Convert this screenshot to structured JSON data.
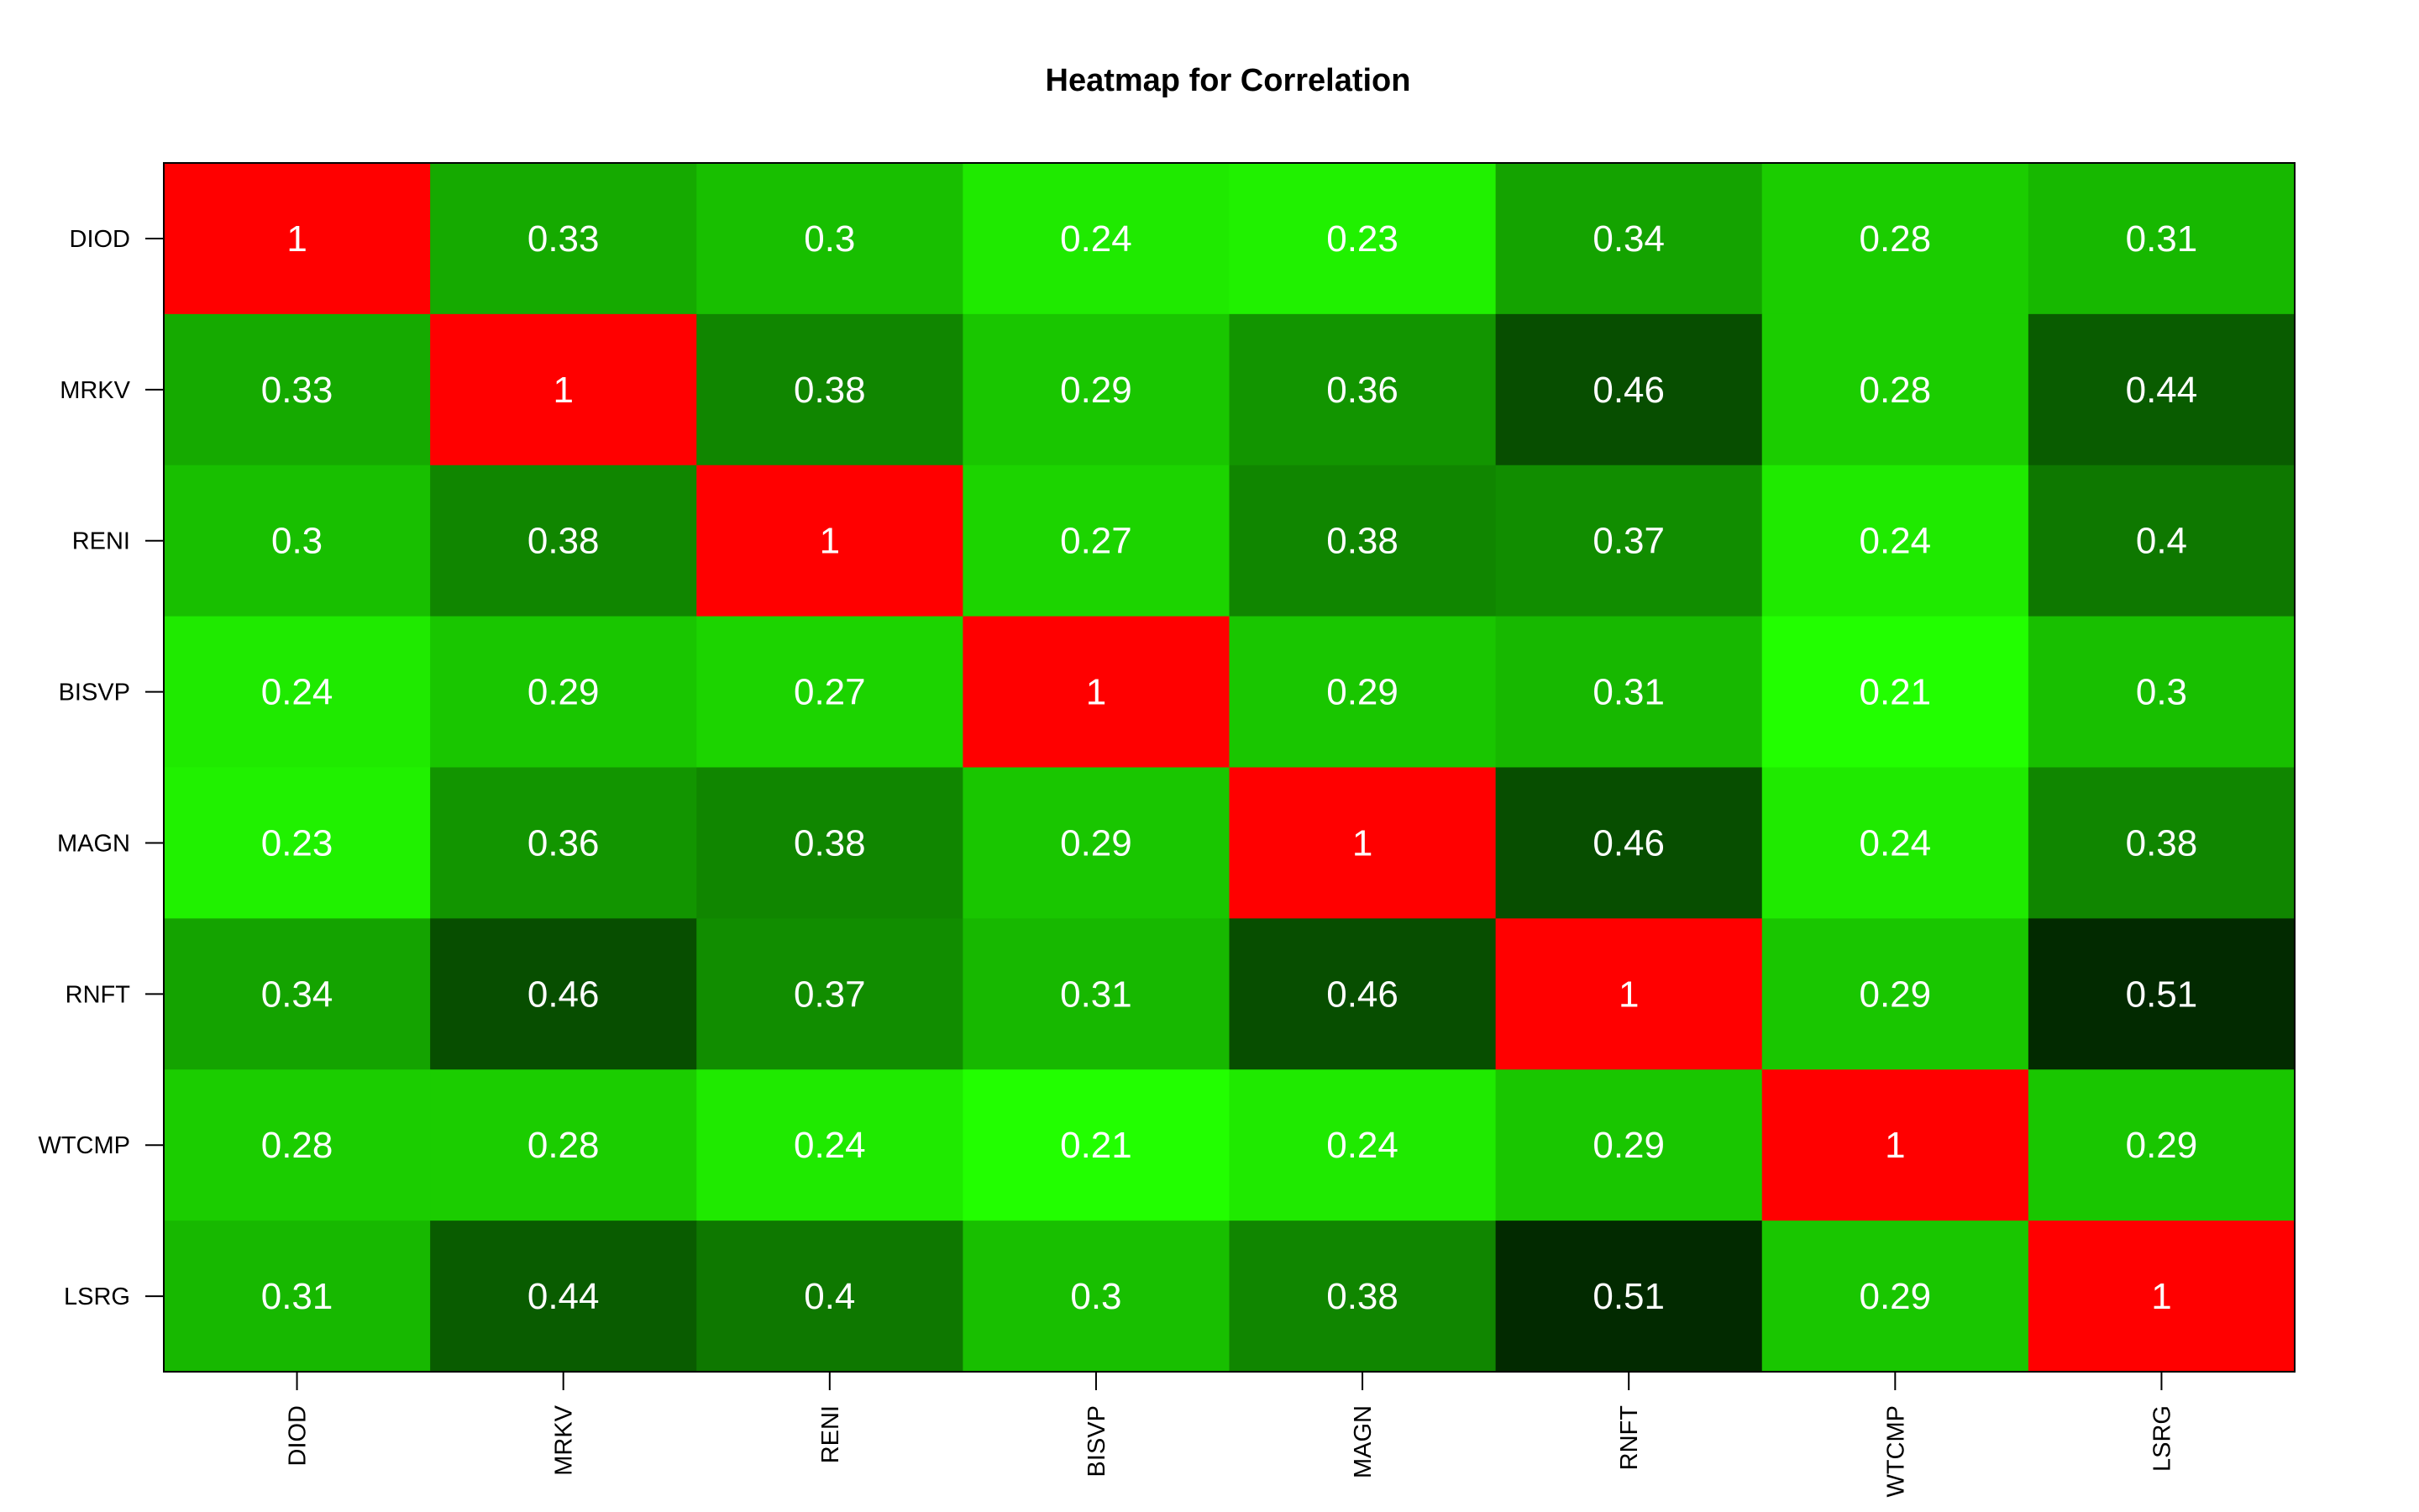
{
  "chart_data": {
    "type": "heatmap",
    "title": "Heatmap for Correlation",
    "rows": [
      "DIOD",
      "MRKV",
      "RENI",
      "BISVP",
      "MAGN",
      "RNFT",
      "WTCMP",
      "LSRG"
    ],
    "columns": [
      "DIOD",
      "MRKV",
      "RENI",
      "BISVP",
      "MAGN",
      "RNFT",
      "WTCMP",
      "LSRG"
    ],
    "values": [
      [
        1,
        0.33,
        0.3,
        0.24,
        0.23,
        0.34,
        0.28,
        0.31
      ],
      [
        0.33,
        1,
        0.38,
        0.29,
        0.36,
        0.46,
        0.28,
        0.44
      ],
      [
        0.3,
        0.38,
        1,
        0.27,
        0.38,
        0.37,
        0.24,
        0.4
      ],
      [
        0.24,
        0.29,
        0.27,
        1,
        0.29,
        0.31,
        0.21,
        0.3
      ],
      [
        0.23,
        0.36,
        0.38,
        0.29,
        1,
        0.46,
        0.24,
        0.38
      ],
      [
        0.34,
        0.46,
        0.37,
        0.31,
        0.46,
        1,
        0.29,
        0.51
      ],
      [
        0.28,
        0.28,
        0.24,
        0.21,
        0.24,
        0.29,
        1,
        0.29
      ],
      [
        0.31,
        0.44,
        0.4,
        0.3,
        0.38,
        0.51,
        0.29,
        1
      ]
    ],
    "color_scale": {
      "diagonal": "#ff0000",
      "low": "#22ff00",
      "high": "#022a00"
    },
    "x_tick_orientation": "vertical",
    "legend": "none"
  }
}
